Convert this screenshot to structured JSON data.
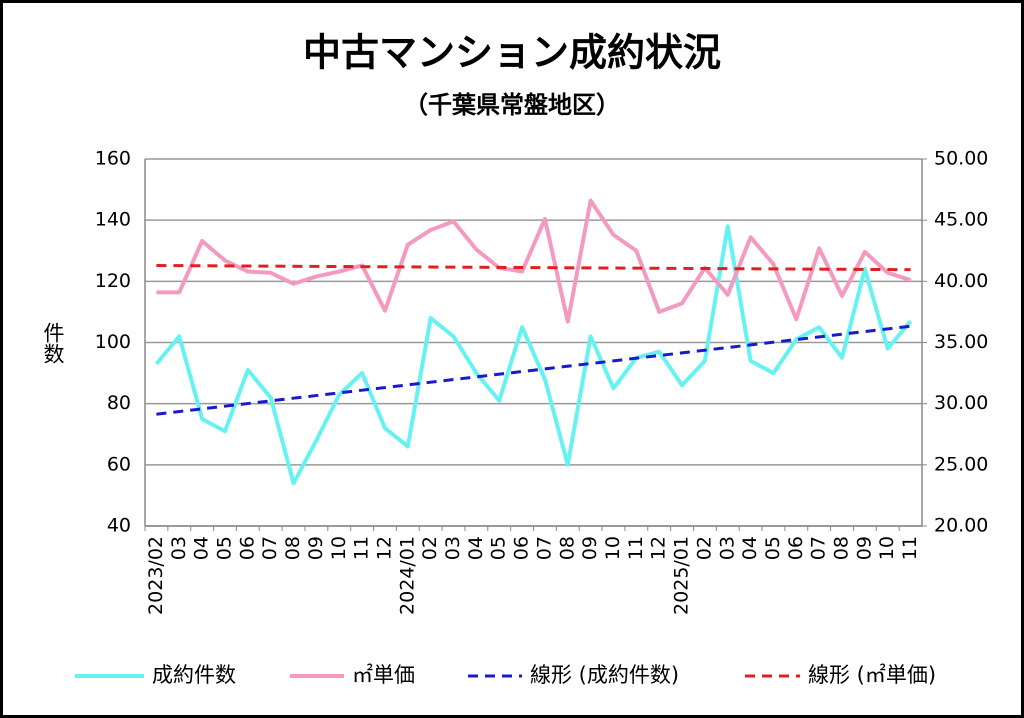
{
  "chart_data": {
    "type": "line",
    "title": "中古マンション成約状況",
    "subtitle": "（千葉県常盤地区）",
    "y_label": "件数",
    "categories": [
      "2023/02",
      "03",
      "04",
      "05",
      "06",
      "07",
      "08",
      "09",
      "10",
      "11",
      "12",
      "2024/01",
      "02",
      "03",
      "04",
      "05",
      "06",
      "07",
      "08",
      "09",
      "10",
      "11",
      "12",
      "2025/01",
      "02",
      "03",
      "04",
      "05",
      "06",
      "07",
      "08",
      "09",
      "10",
      "11"
    ],
    "series": [
      {
        "name": "成約件数",
        "color": "#66f2f2",
        "axis": "y",
        "values": [
          93,
          102,
          75,
          71,
          91,
          82,
          54,
          68,
          83,
          90,
          72,
          66,
          108,
          102,
          90,
          81,
          105,
          88,
          60,
          102,
          85,
          95,
          97,
          86,
          94,
          138,
          94,
          90,
          101,
          105,
          95,
          124,
          98,
          107
        ],
        "trendline": {
          "name": "線形 (成約件数)",
          "color": "#1a1acc"
        }
      },
      {
        "name": "㎡単価",
        "color": "#f49ac1",
        "axis": "y2",
        "values": [
          39.1,
          39.1,
          43.3,
          41.7,
          40.8,
          40.7,
          39.8,
          40.4,
          40.8,
          41.3,
          37.6,
          43.0,
          44.2,
          44.9,
          42.6,
          41.1,
          40.8,
          45.1,
          36.7,
          46.6,
          43.8,
          42.5,
          37.5,
          38.2,
          41.1,
          38.9,
          43.6,
          41.4,
          36.9,
          42.7,
          38.8,
          42.4,
          40.7,
          40.1
        ],
        "trendline": {
          "name": "線形 (㎡単価)",
          "color": "#e02020"
        }
      }
    ],
    "ylim": [
      40,
      160
    ],
    "yticks": [
      40,
      60,
      80,
      100,
      120,
      140,
      160
    ],
    "y2lim": [
      20,
      50
    ],
    "y2ticks": [
      {
        "value": 20,
        "label": "20.00"
      },
      {
        "value": 25,
        "label": "25.00"
      },
      {
        "value": 30,
        "label": "30.00"
      },
      {
        "value": 35,
        "label": "35.00"
      },
      {
        "value": 40,
        "label": "40.00"
      },
      {
        "value": 45,
        "label": "45.00"
      },
      {
        "value": 50,
        "label": "50.00"
      }
    ],
    "grid": true,
    "legend": "bottom"
  }
}
